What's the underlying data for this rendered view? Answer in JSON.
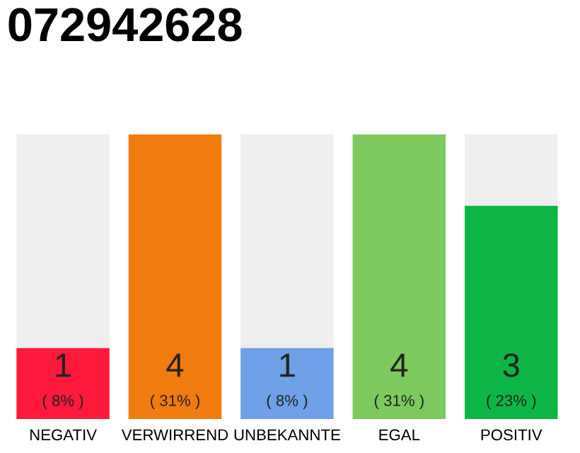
{
  "chart_data": {
    "type": "bar",
    "title": "072942628",
    "stacked": true,
    "categories": [
      "NEGATIV",
      "VERWIRREND",
      "UNBEKANNTE",
      "EGAL",
      "POSITIV"
    ],
    "series": [
      {
        "colors": [
          "#ff1a3c",
          "#f07c0e",
          "#6fa0e8",
          "#7dc95e",
          "#0cb545"
        ],
        "values": [
          1,
          4,
          1,
          4,
          3
        ],
        "value_labels": [
          "1\n( 8% )",
          "4\n( 31% )",
          "1\n( 8% )",
          "4\n( 31% )",
          "3\n( 23% )"
        ]
      },
      {
        "color": "#eeeeee",
        "values": [
          3,
          0,
          3,
          0,
          1
        ]
      }
    ],
    "grid": false,
    "legend": false
  }
}
